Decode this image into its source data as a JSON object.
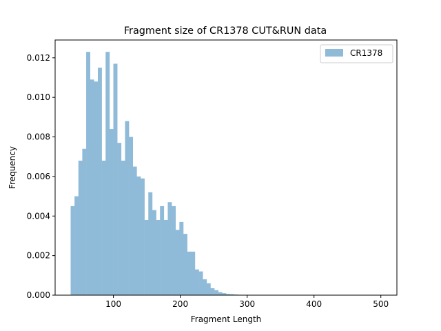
{
  "chart_data": {
    "type": "bar",
    "title": "Fragment size of CR1378 CUT&RUN data",
    "xlabel": "Fragment Length",
    "ylabel": "Frequency",
    "xlim": [
      12.8,
      524
    ],
    "ylim": [
      0,
      0.0129
    ],
    "x_ticks": [
      {
        "value": 100,
        "label": "100"
      },
      {
        "value": 200,
        "label": "200"
      },
      {
        "value": 300,
        "label": "300"
      },
      {
        "value": 400,
        "label": "400"
      },
      {
        "value": 500,
        "label": "500"
      }
    ],
    "y_ticks": [
      {
        "value": 0,
        "label": "0.000"
      },
      {
        "value": 0.002,
        "label": "0.002"
      },
      {
        "value": 0.004,
        "label": "0.004"
      },
      {
        "value": 0.006,
        "label": "0.006"
      },
      {
        "value": 0.008,
        "label": "0.008"
      },
      {
        "value": 0.01,
        "label": "0.010"
      },
      {
        "value": 0.012,
        "label": "0.012"
      }
    ],
    "legend": {
      "position": "top-right",
      "entries": [
        "CR1378"
      ]
    },
    "grid": false,
    "series": [
      {
        "name": "CR1378",
        "color": "#8fbbd9",
        "bin_width": 5.81,
        "x_start": 36,
        "values": [
          0.0045,
          0.005,
          0.0068,
          0.0074,
          0.0123,
          0.0109,
          0.0108,
          0.0115,
          0.0068,
          0.0123,
          0.0084,
          0.0117,
          0.0077,
          0.0068,
          0.0088,
          0.008,
          0.0065,
          0.006,
          0.0059,
          0.0038,
          0.0052,
          0.0043,
          0.0038,
          0.0045,
          0.0038,
          0.0047,
          0.0045,
          0.0033,
          0.0037,
          0.0031,
          0.0022,
          0.0022,
          0.0013,
          0.0012,
          0.0008,
          0.0006,
          0.00035,
          0.00025,
          0.00015,
          0.0001,
          6e-05,
          5e-05,
          3e-05,
          2e-05,
          1e-05,
          1e-05,
          1e-05,
          1e-05
        ]
      }
    ]
  }
}
